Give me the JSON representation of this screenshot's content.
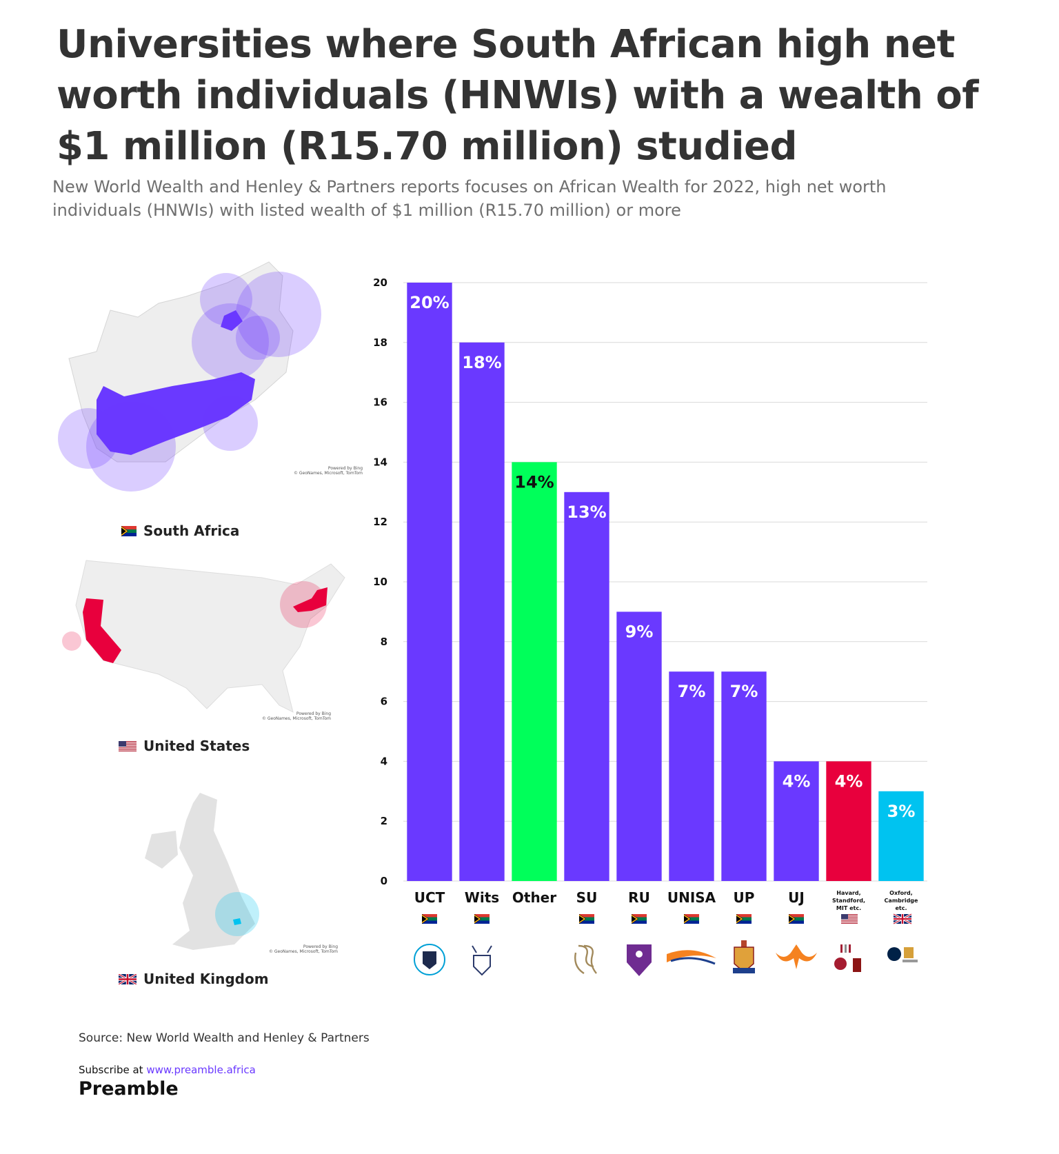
{
  "header": {
    "title": "Universities where South African high net worth individuals (HNWIs) with a wealth of $1 million (R15.70 million) studied",
    "subtitle": "New World Wealth and Henley & Partners reports focuses on African Wealth for 2022, high net worth individuals (HNWIs) with listed wealth of $1 million (R15.70 million) or more"
  },
  "maps": [
    {
      "label": "South Africa",
      "flag": "za-flag-icon",
      "attribution": [
        "Powered by Bing",
        "© GeoNames, Microsoft, TomTom"
      ]
    },
    {
      "label": "United States",
      "flag": "us-flag-icon",
      "attribution": [
        "Powered by Bing",
        "© GeoNames, Microsoft, TomTom"
      ]
    },
    {
      "label": "United Kingdom",
      "flag": "uk-flag-icon",
      "attribution": [
        "Powered by Bing",
        "© GeoNames, Microsoft, TomTom"
      ]
    }
  ],
  "colors": {
    "purple": "#6a39ff",
    "green": "#00ff5a",
    "red": "#e8003d",
    "cyan": "#00c3f0",
    "grid": "#d9d9d9"
  },
  "chart_data": {
    "type": "bar",
    "ylim": [
      0,
      20
    ],
    "yticks": [
      0,
      2,
      4,
      6,
      8,
      10,
      12,
      14,
      16,
      18,
      20
    ],
    "grid": true,
    "categories": [
      "UCT",
      "Wits",
      "Other",
      "SU",
      "RU",
      "UNISA",
      "UP",
      "UJ",
      "Havard, Standford, MIT etc.",
      "Oxford, Cambridge etc."
    ],
    "values": [
      20,
      18,
      14,
      13,
      9,
      7,
      7,
      4,
      4,
      3
    ],
    "data_labels": [
      "20%",
      "18%",
      "14%",
      "13%",
      "9%",
      "7%",
      "7%",
      "4%",
      "4%",
      "3%"
    ],
    "bar_colors": [
      "#6a39ff",
      "#6a39ff",
      "#00ff5a",
      "#6a39ff",
      "#6a39ff",
      "#6a39ff",
      "#6a39ff",
      "#6a39ff",
      "#e8003d",
      "#00c3f0"
    ],
    "label_colors": [
      "#ffffff",
      "#ffffff",
      "#111111",
      "#ffffff",
      "#ffffff",
      "#ffffff",
      "#ffffff",
      "#ffffff",
      "#ffffff",
      "#ffffff"
    ],
    "flags": [
      "za",
      "za",
      "",
      "za",
      "za",
      "za",
      "za",
      "za",
      "us",
      "uk"
    ],
    "small_category_labels": [
      false,
      false,
      false,
      false,
      false,
      false,
      false,
      false,
      true,
      true
    ],
    "logos": [
      "uct-logo-icon",
      "wits-logo-icon",
      "",
      "su-logo-icon",
      "ru-logo-icon",
      "unisa-logo-icon",
      "up-logo-icon",
      "uj-logo-icon",
      "us-universities-logo-icon",
      "uk-universities-logo-icon"
    ]
  },
  "footer": {
    "source": "Source: New World Wealth and Henley & Partners",
    "subscribe_prefix": "Subscribe at ",
    "subscribe_url": "www.preamble.africa",
    "brand": "Preamble"
  }
}
